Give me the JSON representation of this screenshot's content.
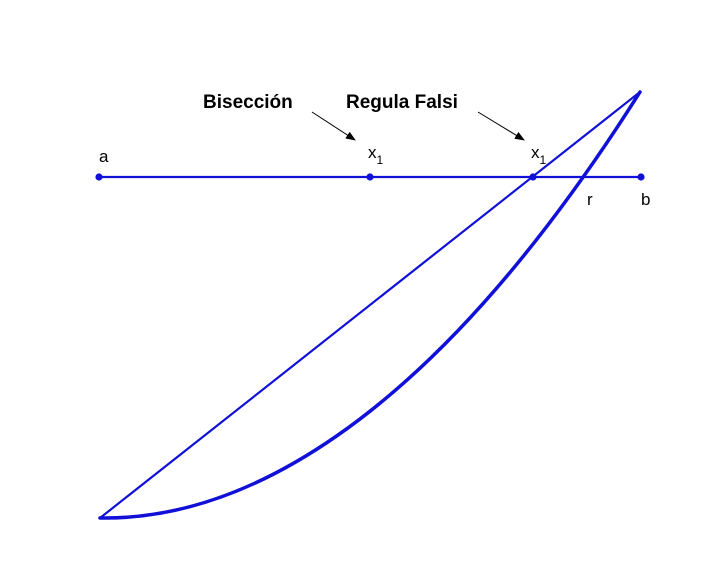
{
  "colors": {
    "stroke": "#1010d8",
    "text": "#000000",
    "arrow": "#000000"
  },
  "annotations": {
    "bisection": "Bisección",
    "regula_falsi": "Regula Falsi"
  },
  "points": {
    "a": "a",
    "b": "b",
    "r": "r",
    "x_main": "x",
    "x_sub": "1"
  }
}
